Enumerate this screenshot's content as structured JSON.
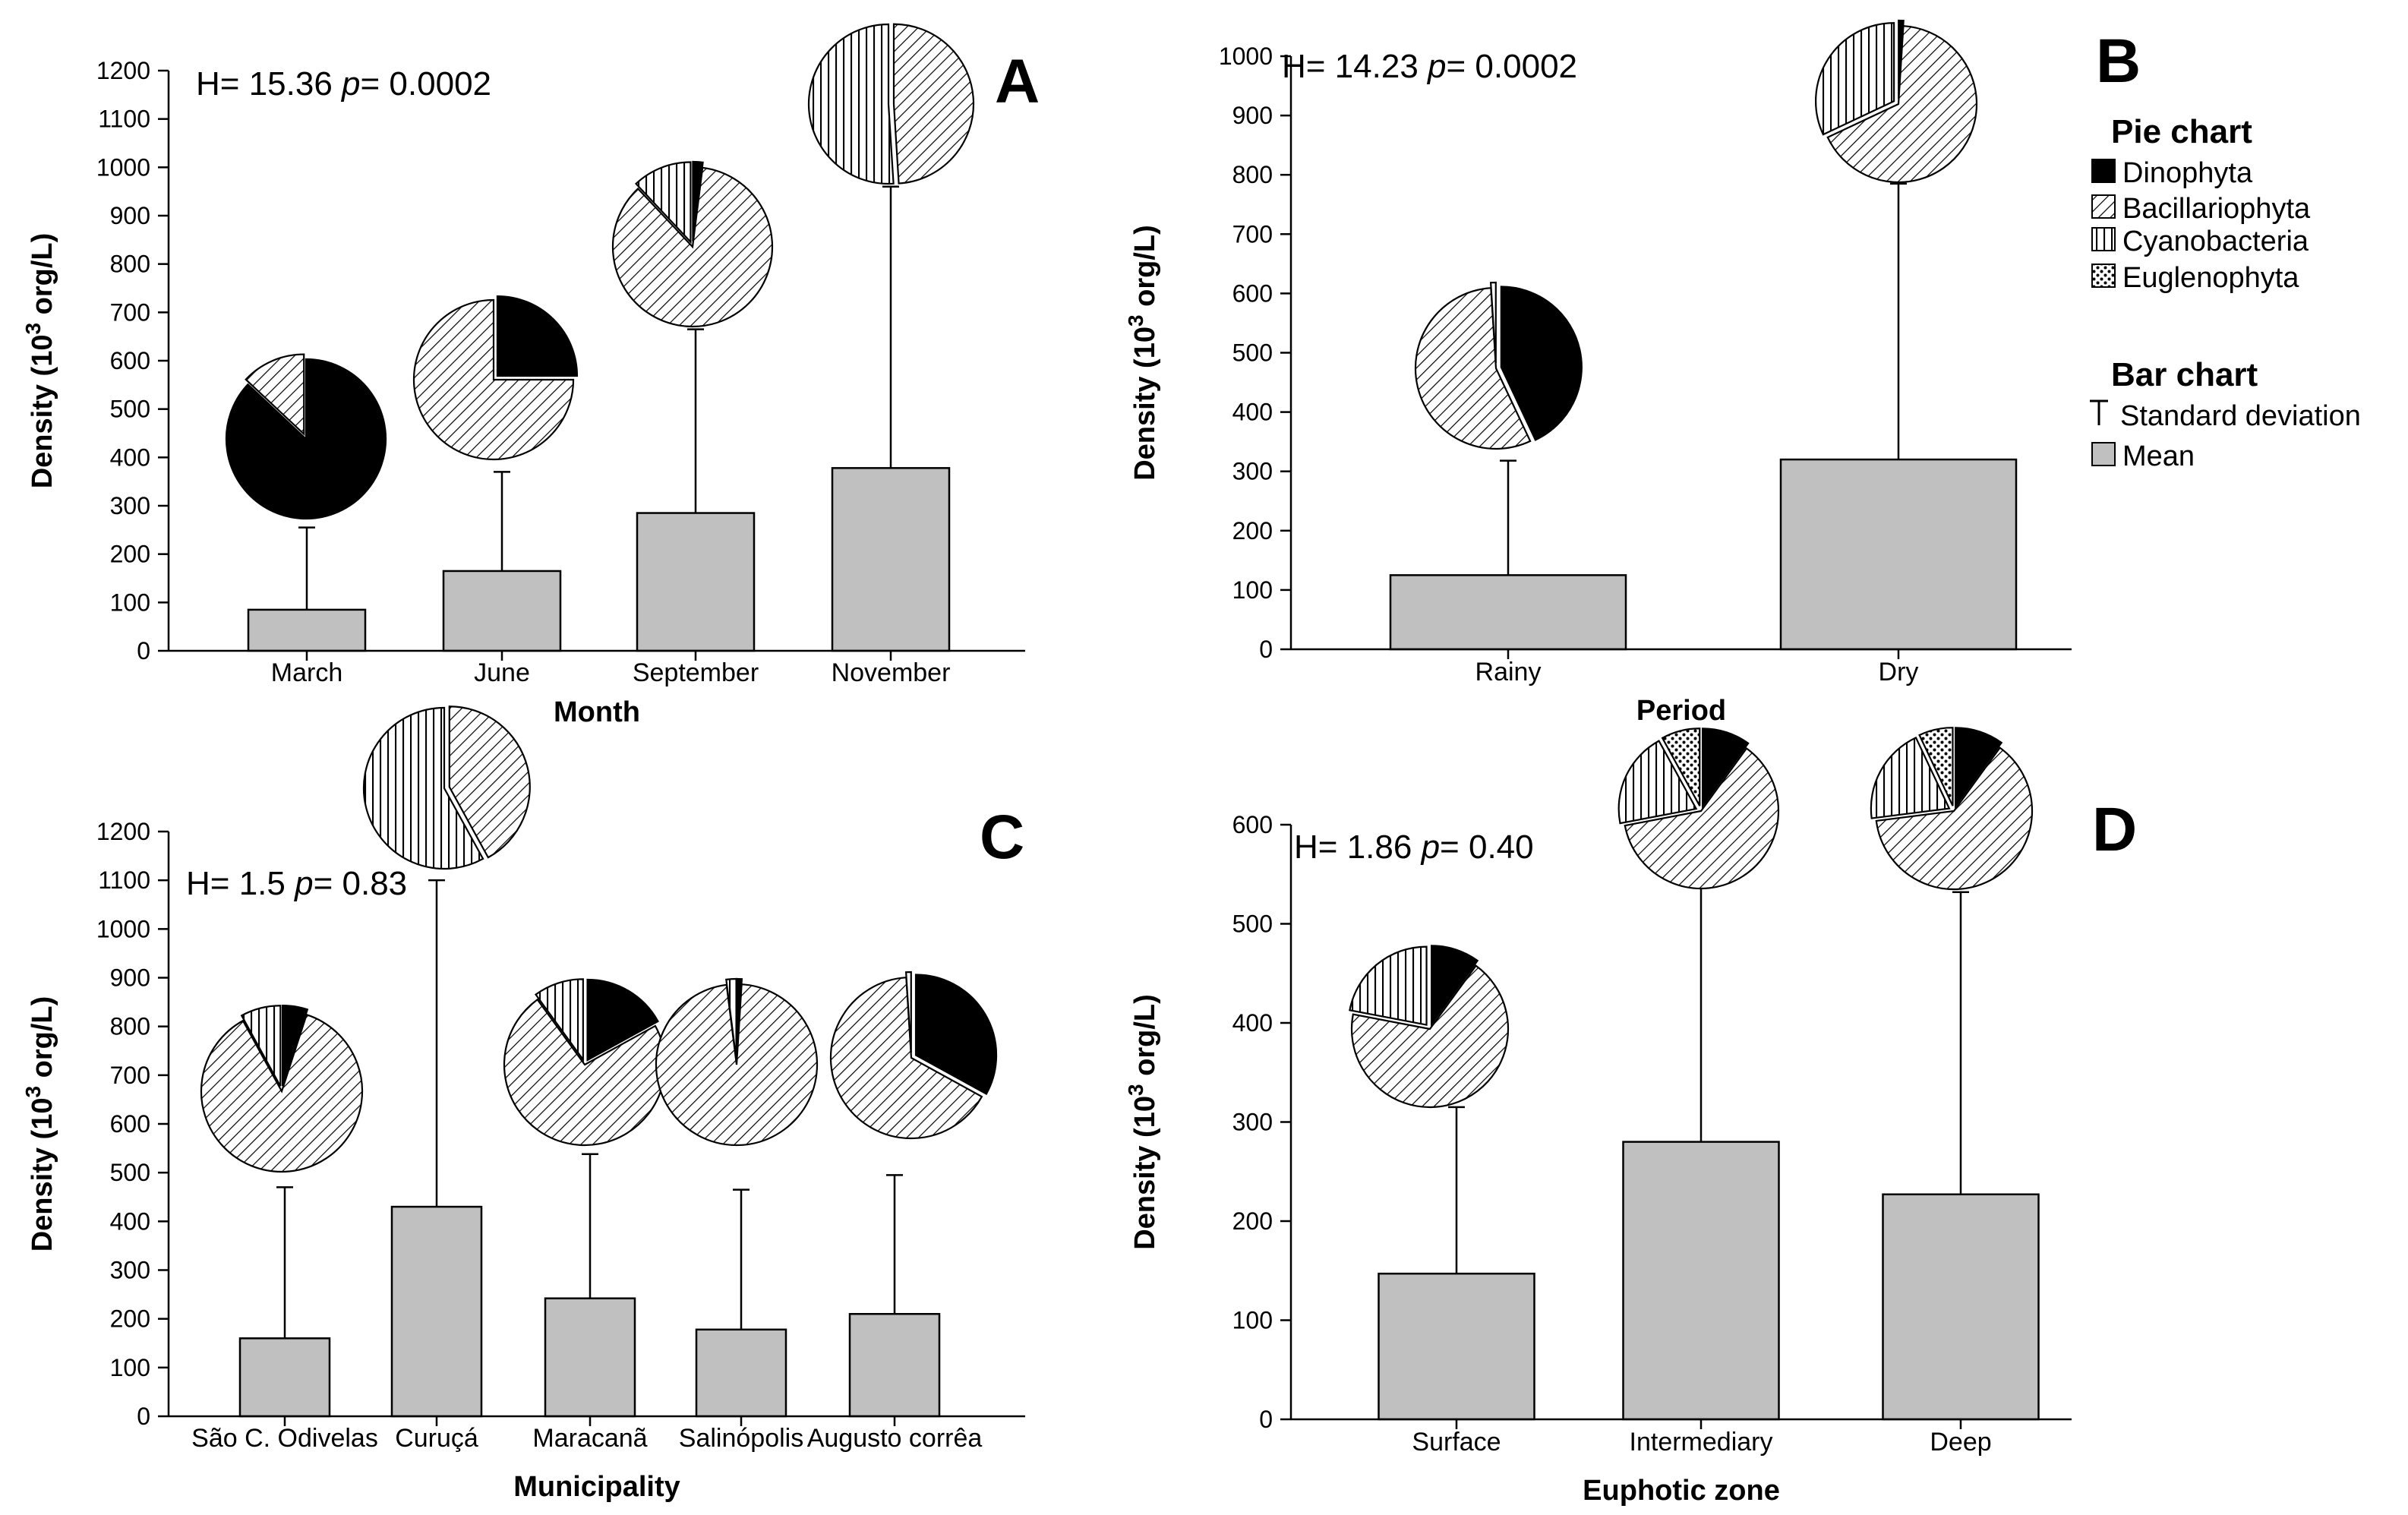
{
  "legend": {
    "pie_title": "Pie chart",
    "pie_items": [
      "Dinophyta",
      "Bacillariophyta",
      "Cyanobacteria",
      "Euglenophyta"
    ],
    "bar_title": "Bar chart",
    "bar_items": [
      "Standard deviation",
      "Mean"
    ]
  },
  "series_names": [
    "Dinophyta",
    "Bacillariophyta",
    "Cyanobacteria",
    "Euglenophyta"
  ],
  "chart_data": [
    {
      "type": "bar",
      "panel": "A",
      "title": "",
      "stat_h": "H= 15.36 ",
      "stat_p": "p",
      "stat_pv": "= 0.0002",
      "xlabel": "Month",
      "ylabel": "Density (10",
      "ylabel_sup": "3",
      "ylabel_end": " org/L)",
      "ylim": [
        0,
        1200
      ],
      "yticks": [
        0,
        100,
        200,
        300,
        400,
        500,
        600,
        700,
        800,
        900,
        1000,
        1100,
        1200
      ],
      "categories": [
        "March",
        "June",
        "September",
        "November"
      ],
      "mean": [
        85,
        165,
        285,
        378
      ],
      "sd_upper": [
        255,
        370,
        665,
        960
      ],
      "pies": [
        {
          "Dinophyta": 87,
          "Bacillariophyta": 13,
          "Cyanobacteria": 0,
          "Euglenophyta": 0
        },
        {
          "Dinophyta": 25,
          "Bacillariophyta": 75,
          "Cyanobacteria": 0,
          "Euglenophyta": 0
        },
        {
          "Dinophyta": 2,
          "Bacillariophyta": 86,
          "Cyanobacteria": 12,
          "Euglenophyta": 0
        },
        {
          "Dinophyta": 0,
          "Bacillariophyta": 49,
          "Cyanobacteria": 51,
          "Euglenophyta": 0
        }
      ]
    },
    {
      "type": "bar",
      "panel": "B",
      "title": "",
      "stat_h": "H= 14.23 ",
      "stat_p": "p",
      "stat_pv": "= 0.0002",
      "xlabel": "Period",
      "ylabel": "Density (10",
      "ylabel_sup": "3",
      "ylabel_end": " org/L)",
      "ylim": [
        0,
        1000
      ],
      "yticks": [
        0,
        100,
        200,
        300,
        400,
        500,
        600,
        700,
        800,
        900,
        1000
      ],
      "categories": [
        "Rainy",
        "Dry"
      ],
      "mean": [
        125,
        320
      ],
      "sd_upper": [
        318,
        785
      ],
      "pies": [
        {
          "Dinophyta": 43,
          "Bacillariophyta": 56,
          "Cyanobacteria": 1,
          "Euglenophyta": 0
        },
        {
          "Dinophyta": 1,
          "Bacillariophyta": 67,
          "Cyanobacteria": 32,
          "Euglenophyta": 0
        }
      ]
    },
    {
      "type": "bar",
      "panel": "C",
      "title": "",
      "stat_h": "H= 1.5 ",
      "stat_p": "p",
      "stat_pv": "= 0.83",
      "xlabel": "Municipality",
      "ylabel": "Density (10",
      "ylabel_sup": "3",
      "ylabel_end": " org/L)",
      "ylim": [
        0,
        1200
      ],
      "yticks": [
        0,
        100,
        200,
        300,
        400,
        500,
        600,
        700,
        800,
        900,
        1000,
        1100,
        1200
      ],
      "categories": [
        "São C. Odivelas",
        "Curuçá",
        "Maracanã",
        "Salinópolis",
        "Augusto corrêa"
      ],
      "mean": [
        160,
        430,
        242,
        178,
        210
      ],
      "sd_upper": [
        470,
        1100,
        538,
        465,
        495
      ],
      "pies": [
        {
          "Dinophyta": 5,
          "Bacillariophyta": 87,
          "Cyanobacteria": 8,
          "Euglenophyta": 0
        },
        {
          "Dinophyta": 0,
          "Bacillariophyta": 42,
          "Cyanobacteria": 58,
          "Euglenophyta": 0
        },
        {
          "Dinophyta": 17,
          "Bacillariophyta": 73,
          "Cyanobacteria": 10,
          "Euglenophyta": 0
        },
        {
          "Dinophyta": 1,
          "Bacillariophyta": 97,
          "Cyanobacteria": 2,
          "Euglenophyta": 0
        },
        {
          "Dinophyta": 33,
          "Bacillariophyta": 66,
          "Cyanobacteria": 1,
          "Euglenophyta": 0
        }
      ]
    },
    {
      "type": "bar",
      "panel": "D",
      "title": "",
      "stat_h": "H= 1.86 ",
      "stat_p": "p",
      "stat_pv": "= 0.40",
      "xlabel": "Euphotic zone",
      "ylabel": "Density (10",
      "ylabel_sup": "3",
      "ylabel_end": " org/L)",
      "ylim": [
        0,
        600
      ],
      "yticks": [
        0,
        100,
        200,
        300,
        400,
        500,
        600
      ],
      "categories": [
        "Surface",
        "Intermediary",
        "Deep"
      ],
      "mean": [
        147,
        280,
        227
      ],
      "sd_upper": [
        315,
        545,
        532
      ],
      "pies": [
        {
          "Dinophyta": 10,
          "Bacillariophyta": 68,
          "Cyanobacteria": 22,
          "Euglenophyta": 0
        },
        {
          "Dinophyta": 10,
          "Bacillariophyta": 62,
          "Cyanobacteria": 20,
          "Euglenophyta": 8
        },
        {
          "Dinophyta": 10,
          "Bacillariophyta": 63,
          "Cyanobacteria": 20,
          "Euglenophyta": 7
        }
      ]
    }
  ],
  "colors": {
    "bar_fill": "#c0c0c0",
    "dinophyta": "#000000",
    "background": "#ffffff"
  }
}
